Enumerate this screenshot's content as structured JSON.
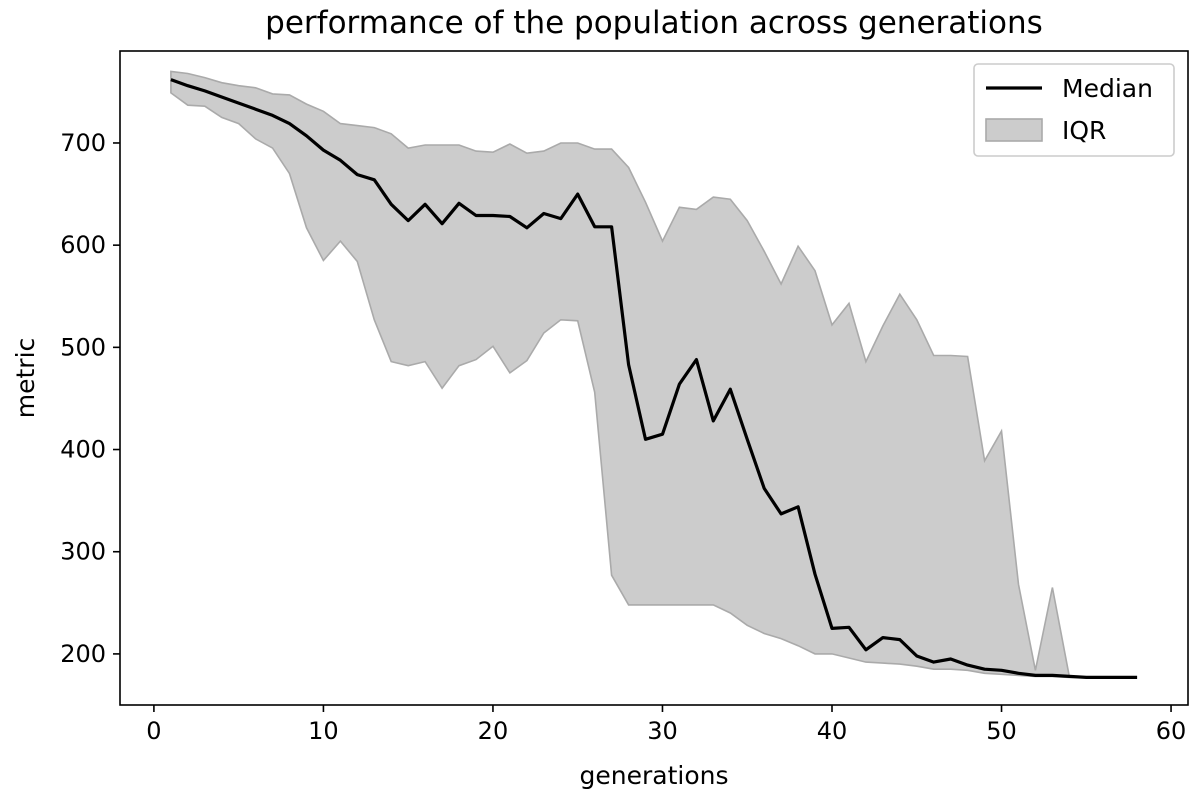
{
  "chart_data": {
    "type": "line",
    "title": "performance of the population across generations",
    "xlabel": "generations",
    "ylabel": "metric",
    "xlim": [
      -2,
      61
    ],
    "ylim": [
      150,
      790
    ],
    "xticks": [
      0,
      10,
      20,
      30,
      40,
      50,
      60
    ],
    "yticks": [
      200,
      300,
      400,
      500,
      600,
      700
    ],
    "grid": false,
    "legend": {
      "placement": "top-right",
      "entries": [
        {
          "label": "Median",
          "kind": "line",
          "color": "#000000"
        },
        {
          "label": "IQR",
          "kind": "patch",
          "color": "#cccccc"
        }
      ]
    },
    "x": [
      1,
      2,
      3,
      4,
      5,
      6,
      7,
      8,
      9,
      10,
      11,
      12,
      13,
      14,
      15,
      16,
      17,
      18,
      19,
      20,
      21,
      22,
      23,
      24,
      25,
      26,
      27,
      28,
      29,
      30,
      31,
      32,
      33,
      34,
      35,
      36,
      37,
      38,
      39,
      40,
      41,
      42,
      43,
      44,
      45,
      46,
      47,
      48,
      49,
      50,
      51,
      52,
      53,
      54,
      55,
      56,
      57,
      58
    ],
    "series": [
      {
        "name": "Median",
        "color": "#000000",
        "values": [
          762,
          756,
          751,
          745,
          739,
          733,
          727,
          719,
          707,
          693,
          683,
          669,
          664,
          640,
          624,
          640,
          621,
          641,
          629,
          629,
          628,
          617,
          631,
          626,
          650,
          618,
          618,
          483,
          410,
          415,
          464,
          488,
          428,
          459,
          410,
          362,
          337,
          344,
          278,
          225,
          226,
          204,
          216,
          214,
          198,
          192,
          195,
          189,
          185,
          184,
          181,
          179,
          179,
          178,
          177,
          177,
          177,
          177
        ]
      },
      {
        "name": "IQR",
        "kind": "band",
        "color": "#cccccc",
        "upper": [
          770,
          768,
          764,
          759,
          756,
          754,
          748,
          747,
          738,
          731,
          719,
          717,
          715,
          709,
          695,
          698,
          698,
          698,
          692,
          691,
          699,
          690,
          692,
          700,
          700,
          694,
          694,
          676,
          642,
          604,
          637,
          635,
          647,
          645,
          624,
          594,
          562,
          599,
          575,
          522,
          543,
          486,
          521,
          552,
          527,
          492,
          492,
          491,
          389,
          418,
          268,
          184,
          265,
          178,
          177,
          177,
          177,
          177
        ],
        "lower": [
          749,
          737,
          736,
          725,
          719,
          704,
          695,
          670,
          617,
          585,
          604,
          584,
          527,
          486,
          482,
          486,
          460,
          482,
          488,
          501,
          475,
          487,
          514,
          527,
          526,
          456,
          277,
          248,
          248,
          248,
          248,
          248,
          248,
          240,
          228,
          220,
          215,
          208,
          200,
          200,
          196,
          192,
          191,
          190,
          188,
          185,
          185,
          184,
          181,
          180,
          179,
          178,
          178,
          177,
          177,
          177,
          177,
          177
        ]
      }
    ]
  }
}
